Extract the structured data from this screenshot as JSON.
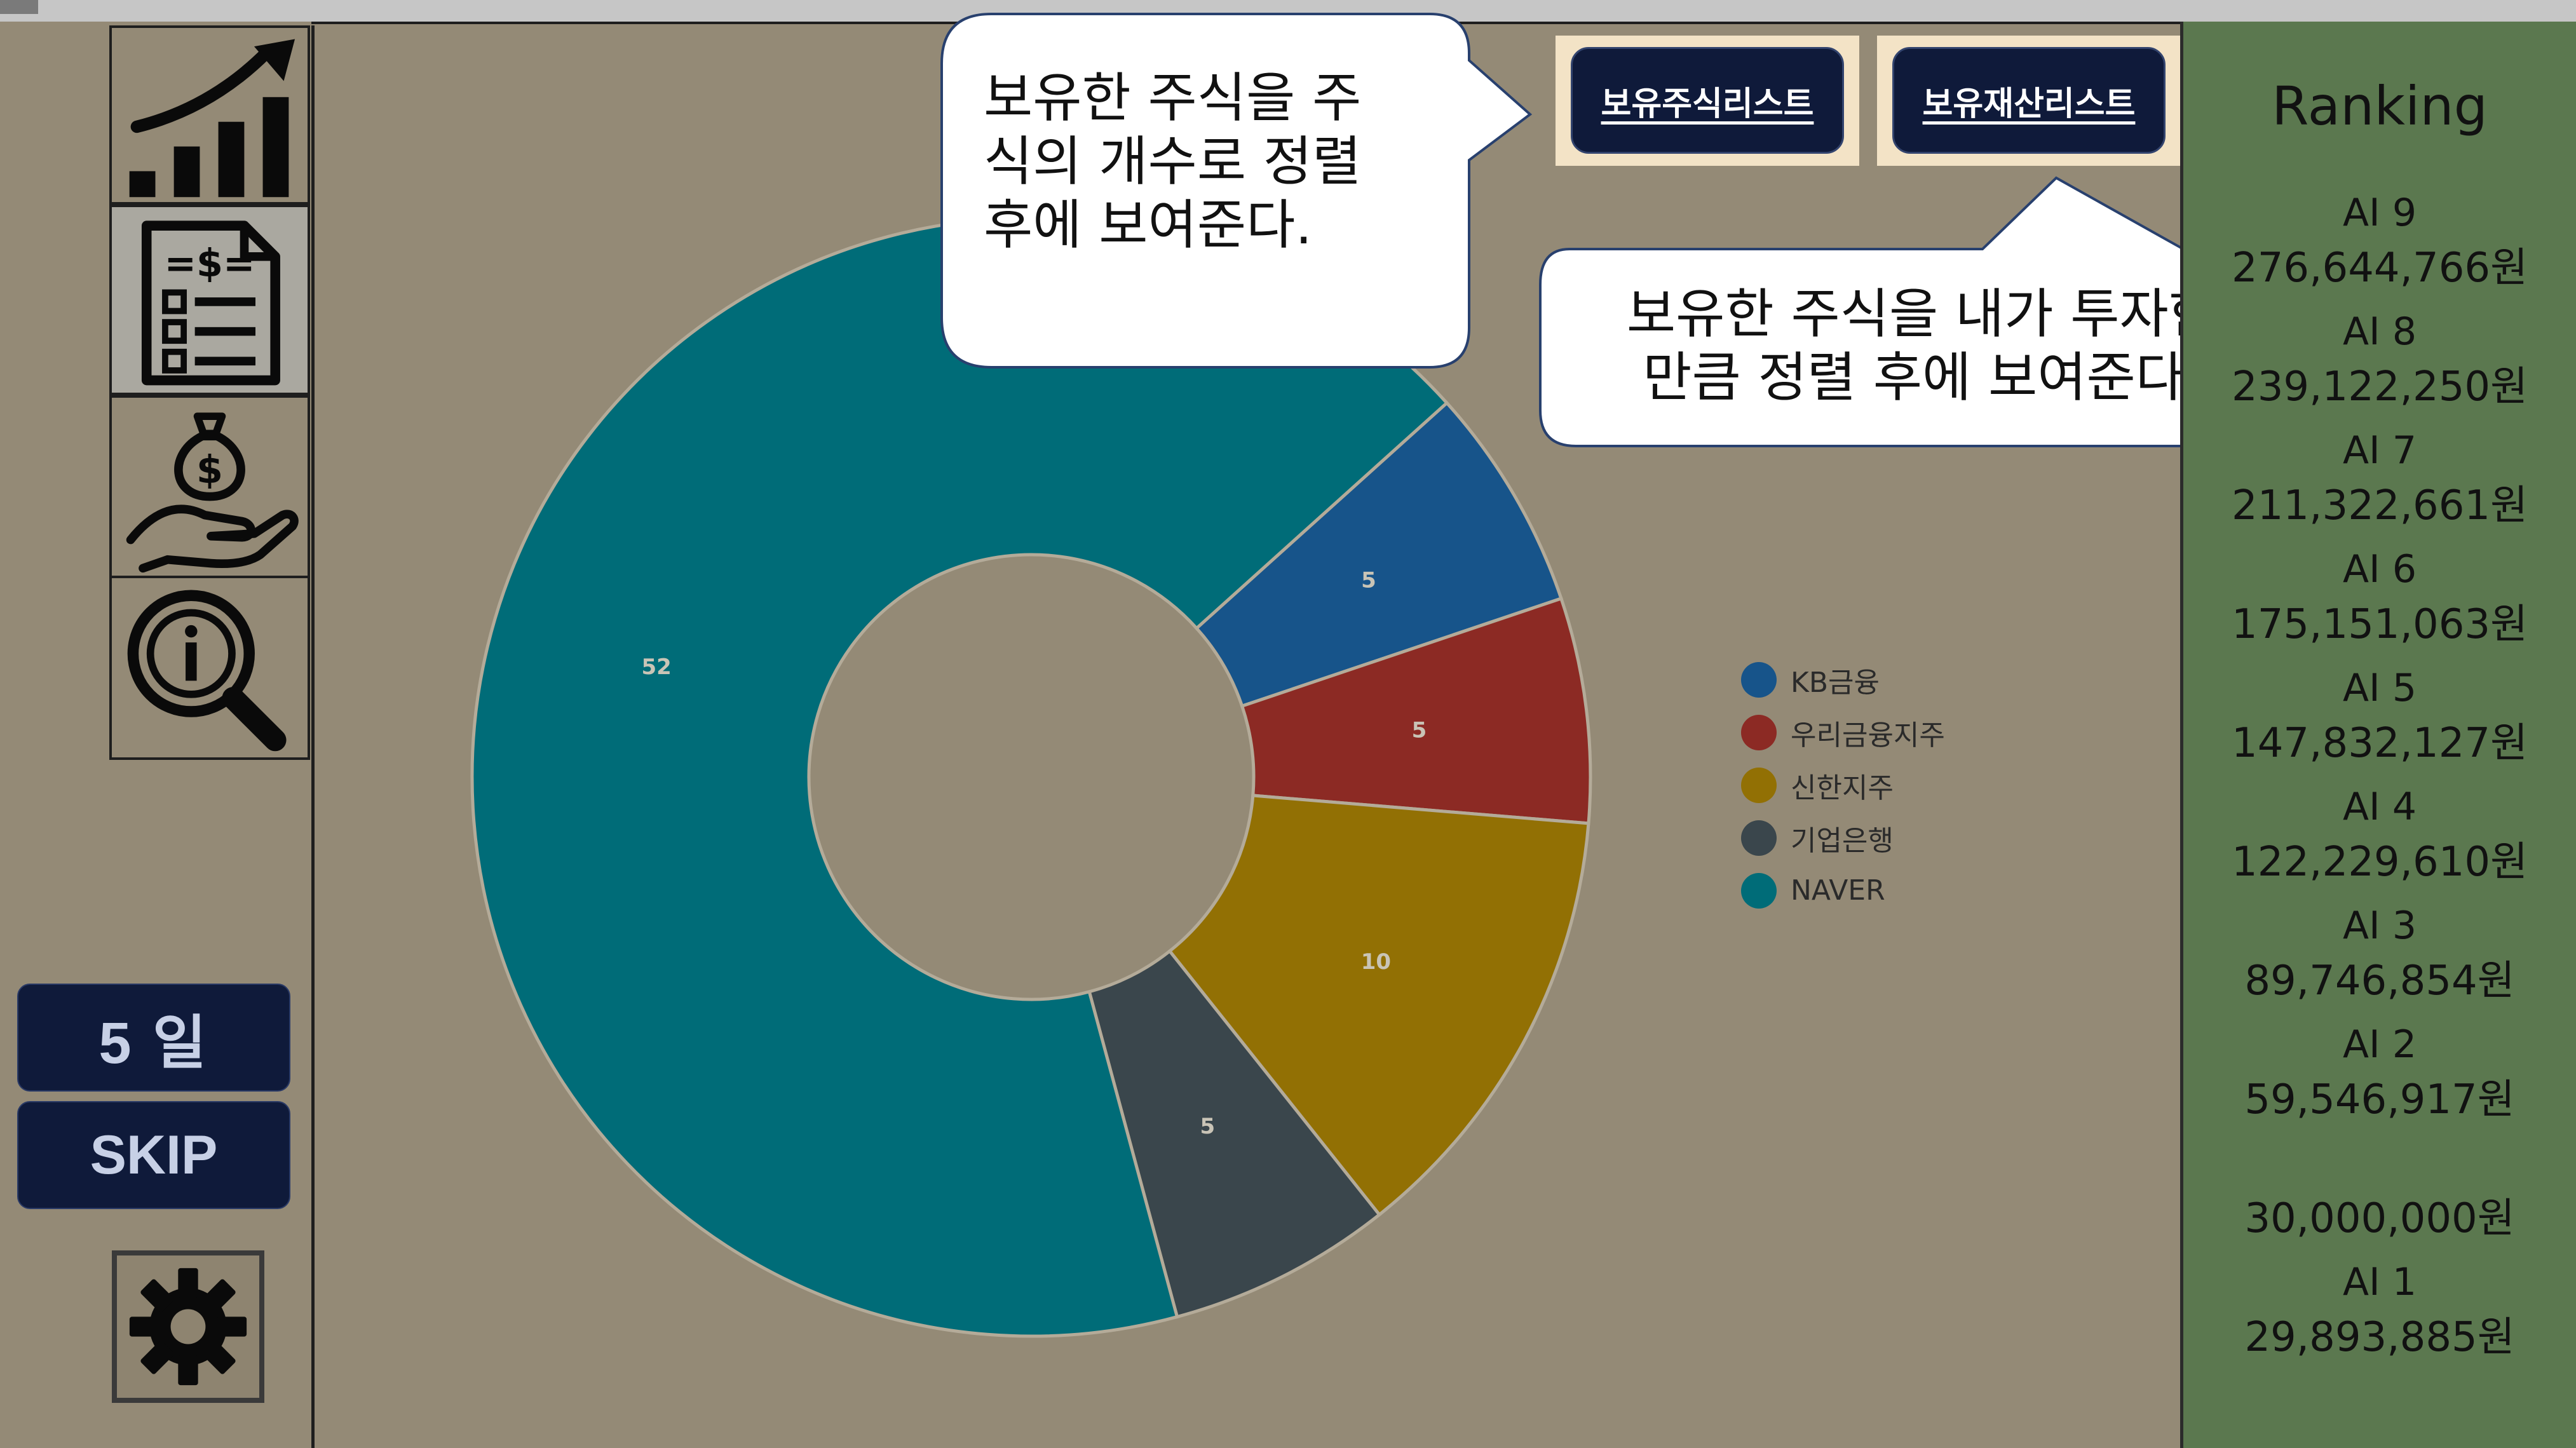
{
  "nav": {
    "items": [
      {
        "id": "chart",
        "icon": "growth-chart-icon"
      },
      {
        "id": "report",
        "icon": "financial-document-icon",
        "active": true
      },
      {
        "id": "invest",
        "icon": "money-bag-hand-icon"
      },
      {
        "id": "info",
        "icon": "info-magnifier-icon"
      }
    ],
    "day_label": "5 일",
    "skip_label": "SKIP",
    "settings_icon": "gear-icon"
  },
  "buttons": {
    "stock_list": "보유주식리스트",
    "asset_list": "보유재산리스트"
  },
  "callouts": {
    "stock_list_lines": [
      "보유한 주식을 주",
      "식의 개수로 정렬",
      "후에 보여준다."
    ],
    "asset_list_lines": [
      "보유한 주식을 내가 투자한",
      "만큼 정렬 후에 보여준다."
    ]
  },
  "chart_data": {
    "type": "pie",
    "donut": true,
    "categories": [
      "KB금융",
      "우리금융지주",
      "신한지주",
      "기업은행",
      "NAVER"
    ],
    "values": [
      5,
      5,
      10,
      5,
      52
    ],
    "colors": [
      "#17548a",
      "#8c2a24",
      "#927004",
      "#3a464c",
      "#006c78"
    ],
    "legend_position": "right"
  },
  "ranking": {
    "title": "Ranking",
    "entries": [
      {
        "name": "AI 9",
        "value": "276,644,766원"
      },
      {
        "name": "AI 8",
        "value": "239,122,250원"
      },
      {
        "name": "AI 7",
        "value": "211,322,661원"
      },
      {
        "name": "AI 6",
        "value": "175,151,063원"
      },
      {
        "name": "AI 5",
        "value": "147,832,127원"
      },
      {
        "name": "AI 4",
        "value": "122,229,610원"
      },
      {
        "name": "AI 3",
        "value": "89,746,854원"
      },
      {
        "name": "AI 2",
        "value": "59,546,917원"
      },
      {
        "name": "",
        "value": "30,000,000원"
      },
      {
        "name": "AI 1",
        "value": "29,893,885원"
      }
    ]
  }
}
